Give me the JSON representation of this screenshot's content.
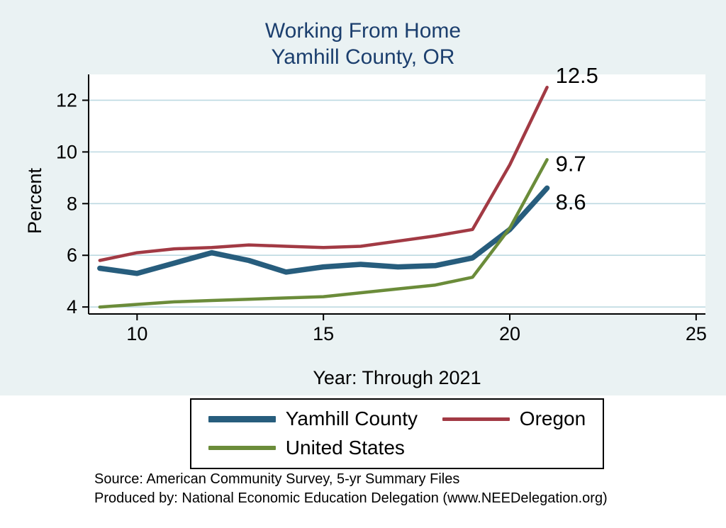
{
  "colors": {
    "background": "#eaf2f3",
    "plot_background": "#ffffff",
    "gridline": "#bdd9e1",
    "axis": "#000000",
    "title": "#1c3f6e",
    "yamhill_blue": "#275d7d",
    "oregon_maroon": "#a23a44",
    "us_green": "#6b8c3a"
  },
  "notes": {
    "source": "Source: American Community Survey, 5-yr Summary Files",
    "produced_by": "Produced by: National Economic Education Delegation (www.NEEDelegation.org)"
  },
  "chart_data": {
    "type": "line",
    "title_lines": [
      "Working From Home",
      "Yamhill County, OR"
    ],
    "title": "Working From Home — Yamhill County, OR",
    "xlabel": "Year: Through 2021",
    "ylabel": "Percent",
    "x": [
      9,
      10,
      11,
      12,
      13,
      14,
      15,
      16,
      17,
      18,
      19,
      20,
      21
    ],
    "xticks": [
      10,
      15,
      20,
      25
    ],
    "yticks": [
      4,
      6,
      8,
      10,
      12
    ],
    "xlim": [
      8.7,
      25.25
    ],
    "ylim": [
      3.73,
      13.0
    ],
    "grid": true,
    "legend_position": "bottom",
    "series": [
      {
        "name": "Yamhill County",
        "color": "#275d7d",
        "line_width": 7.5,
        "values": [
          5.5,
          5.3,
          5.7,
          6.1,
          5.8,
          5.35,
          5.55,
          5.65,
          5.55,
          5.6,
          5.9,
          7.0,
          8.6
        ],
        "end_label": {
          "text": "8.6",
          "dx": 12,
          "dy": 30
        }
      },
      {
        "name": "Oregon",
        "color": "#a23a44",
        "line_width": 4.5,
        "values": [
          5.8,
          6.1,
          6.25,
          6.3,
          6.4,
          6.35,
          6.3,
          6.35,
          6.55,
          6.75,
          7.0,
          9.5,
          12.5
        ],
        "end_label": {
          "text": "12.5",
          "dx": 12,
          "dy": -6
        }
      },
      {
        "name": "United States",
        "color": "#6b8c3a",
        "line_width": 4.5,
        "values": [
          4.0,
          4.1,
          4.2,
          4.25,
          4.3,
          4.35,
          4.4,
          4.55,
          4.7,
          4.85,
          5.15,
          7.05,
          9.7
        ],
        "end_label": {
          "text": "9.7",
          "dx": 12,
          "dy": 16
        }
      }
    ]
  }
}
